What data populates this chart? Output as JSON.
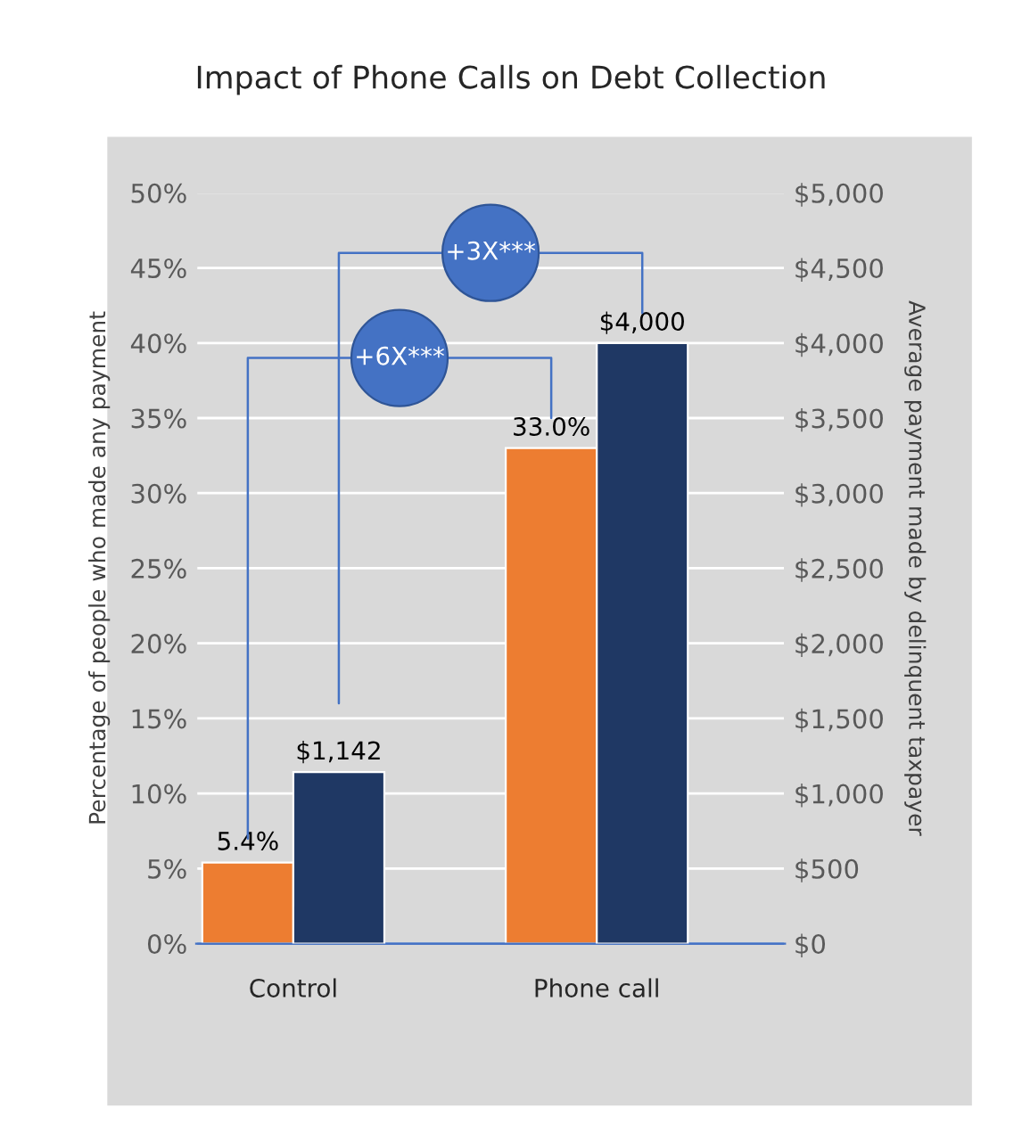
{
  "chart_data": {
    "type": "bar",
    "title": "Impact of Phone Calls on Debt Collection",
    "categories": [
      "Control",
      "Phone call"
    ],
    "series": [
      {
        "color": "#ed7d31",
        "values": [
          5.4,
          33.0
        ],
        "value_labels": [
          "5.4%",
          "33.0%"
        ]
      },
      {
        "color": "#1f3864",
        "values": [
          1142,
          4000
        ],
        "value_labels": [
          "$1,142",
          "$4,000"
        ],
        "axis": "y2"
      }
    ],
    "ylabel": "Percentage of people who made any payment",
    "y2label": "Average payment made by delinquent taxpayer",
    "ylim": [
      0,
      50
    ],
    "yticks": [
      {
        "value": 0,
        "label": "0%"
      },
      {
        "value": 5,
        "label": "5%"
      },
      {
        "value": 10,
        "label": "10%"
      },
      {
        "value": 15,
        "label": "15%"
      },
      {
        "value": 20,
        "label": "20%"
      },
      {
        "value": 25,
        "label": "25%"
      },
      {
        "value": 30,
        "label": "30%"
      },
      {
        "value": 35,
        "label": "35%"
      },
      {
        "value": 40,
        "label": "40%"
      },
      {
        "value": 45,
        "label": "45%"
      },
      {
        "value": 50,
        "label": "50%"
      }
    ],
    "y2lim": [
      0,
      5000
    ],
    "y2ticks": [
      {
        "value": 0,
        "label": "$0"
      },
      {
        "value": 500,
        "label": "$500"
      },
      {
        "value": 1000,
        "label": "$1,000"
      },
      {
        "value": 1500,
        "label": "$1,500"
      },
      {
        "value": 2000,
        "label": "$2,000"
      },
      {
        "value": 2500,
        "label": "$2,500"
      },
      {
        "value": 3000,
        "label": "$3,000"
      },
      {
        "value": 3500,
        "label": "$3,500"
      },
      {
        "value": 4000,
        "label": "$4,000"
      },
      {
        "value": 4500,
        "label": "$4,500"
      },
      {
        "value": 5000,
        "label": "$5,000"
      }
    ],
    "annotations": [
      "+6X***",
      "+3X***"
    ],
    "grid": "y"
  }
}
